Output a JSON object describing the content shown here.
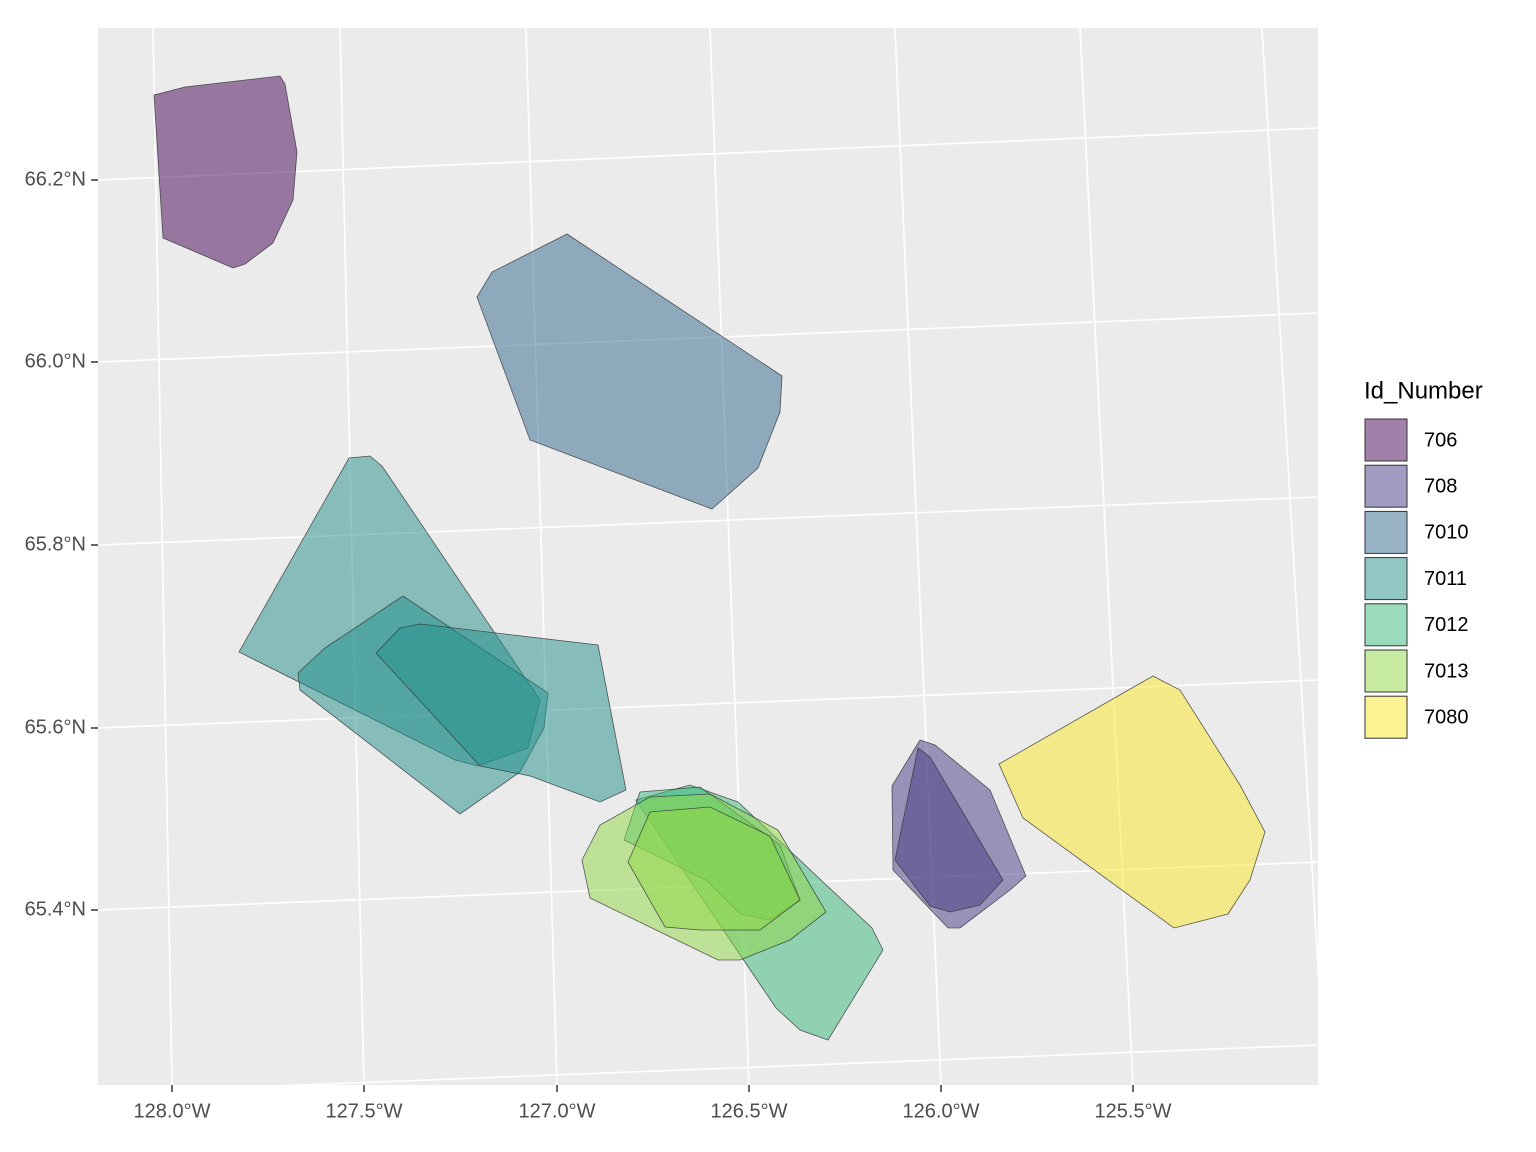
{
  "map": {
    "x_axis_labels": [
      "128.0°W",
      "127.5°W",
      "127.0°W",
      "126.5°W",
      "126.0°W",
      "125.5°W"
    ],
    "y_axis_labels": [
      "66.2°N",
      "66.0°N",
      "65.8°N",
      "65.6°N",
      "65.4°N"
    ],
    "legend": {
      "title": "Id_Number",
      "items": [
        {
          "label": "706",
          "color": "#440154"
        },
        {
          "label": "708",
          "color": "#443A83"
        },
        {
          "label": "7010",
          "color": "#31688E"
        },
        {
          "label": "7011",
          "color": "#21908C"
        },
        {
          "label": "7012",
          "color": "#35B779"
        },
        {
          "label": "7013",
          "color": "#8FD744"
        },
        {
          "label": "7080",
          "color": "#FDE725"
        }
      ]
    }
  }
}
